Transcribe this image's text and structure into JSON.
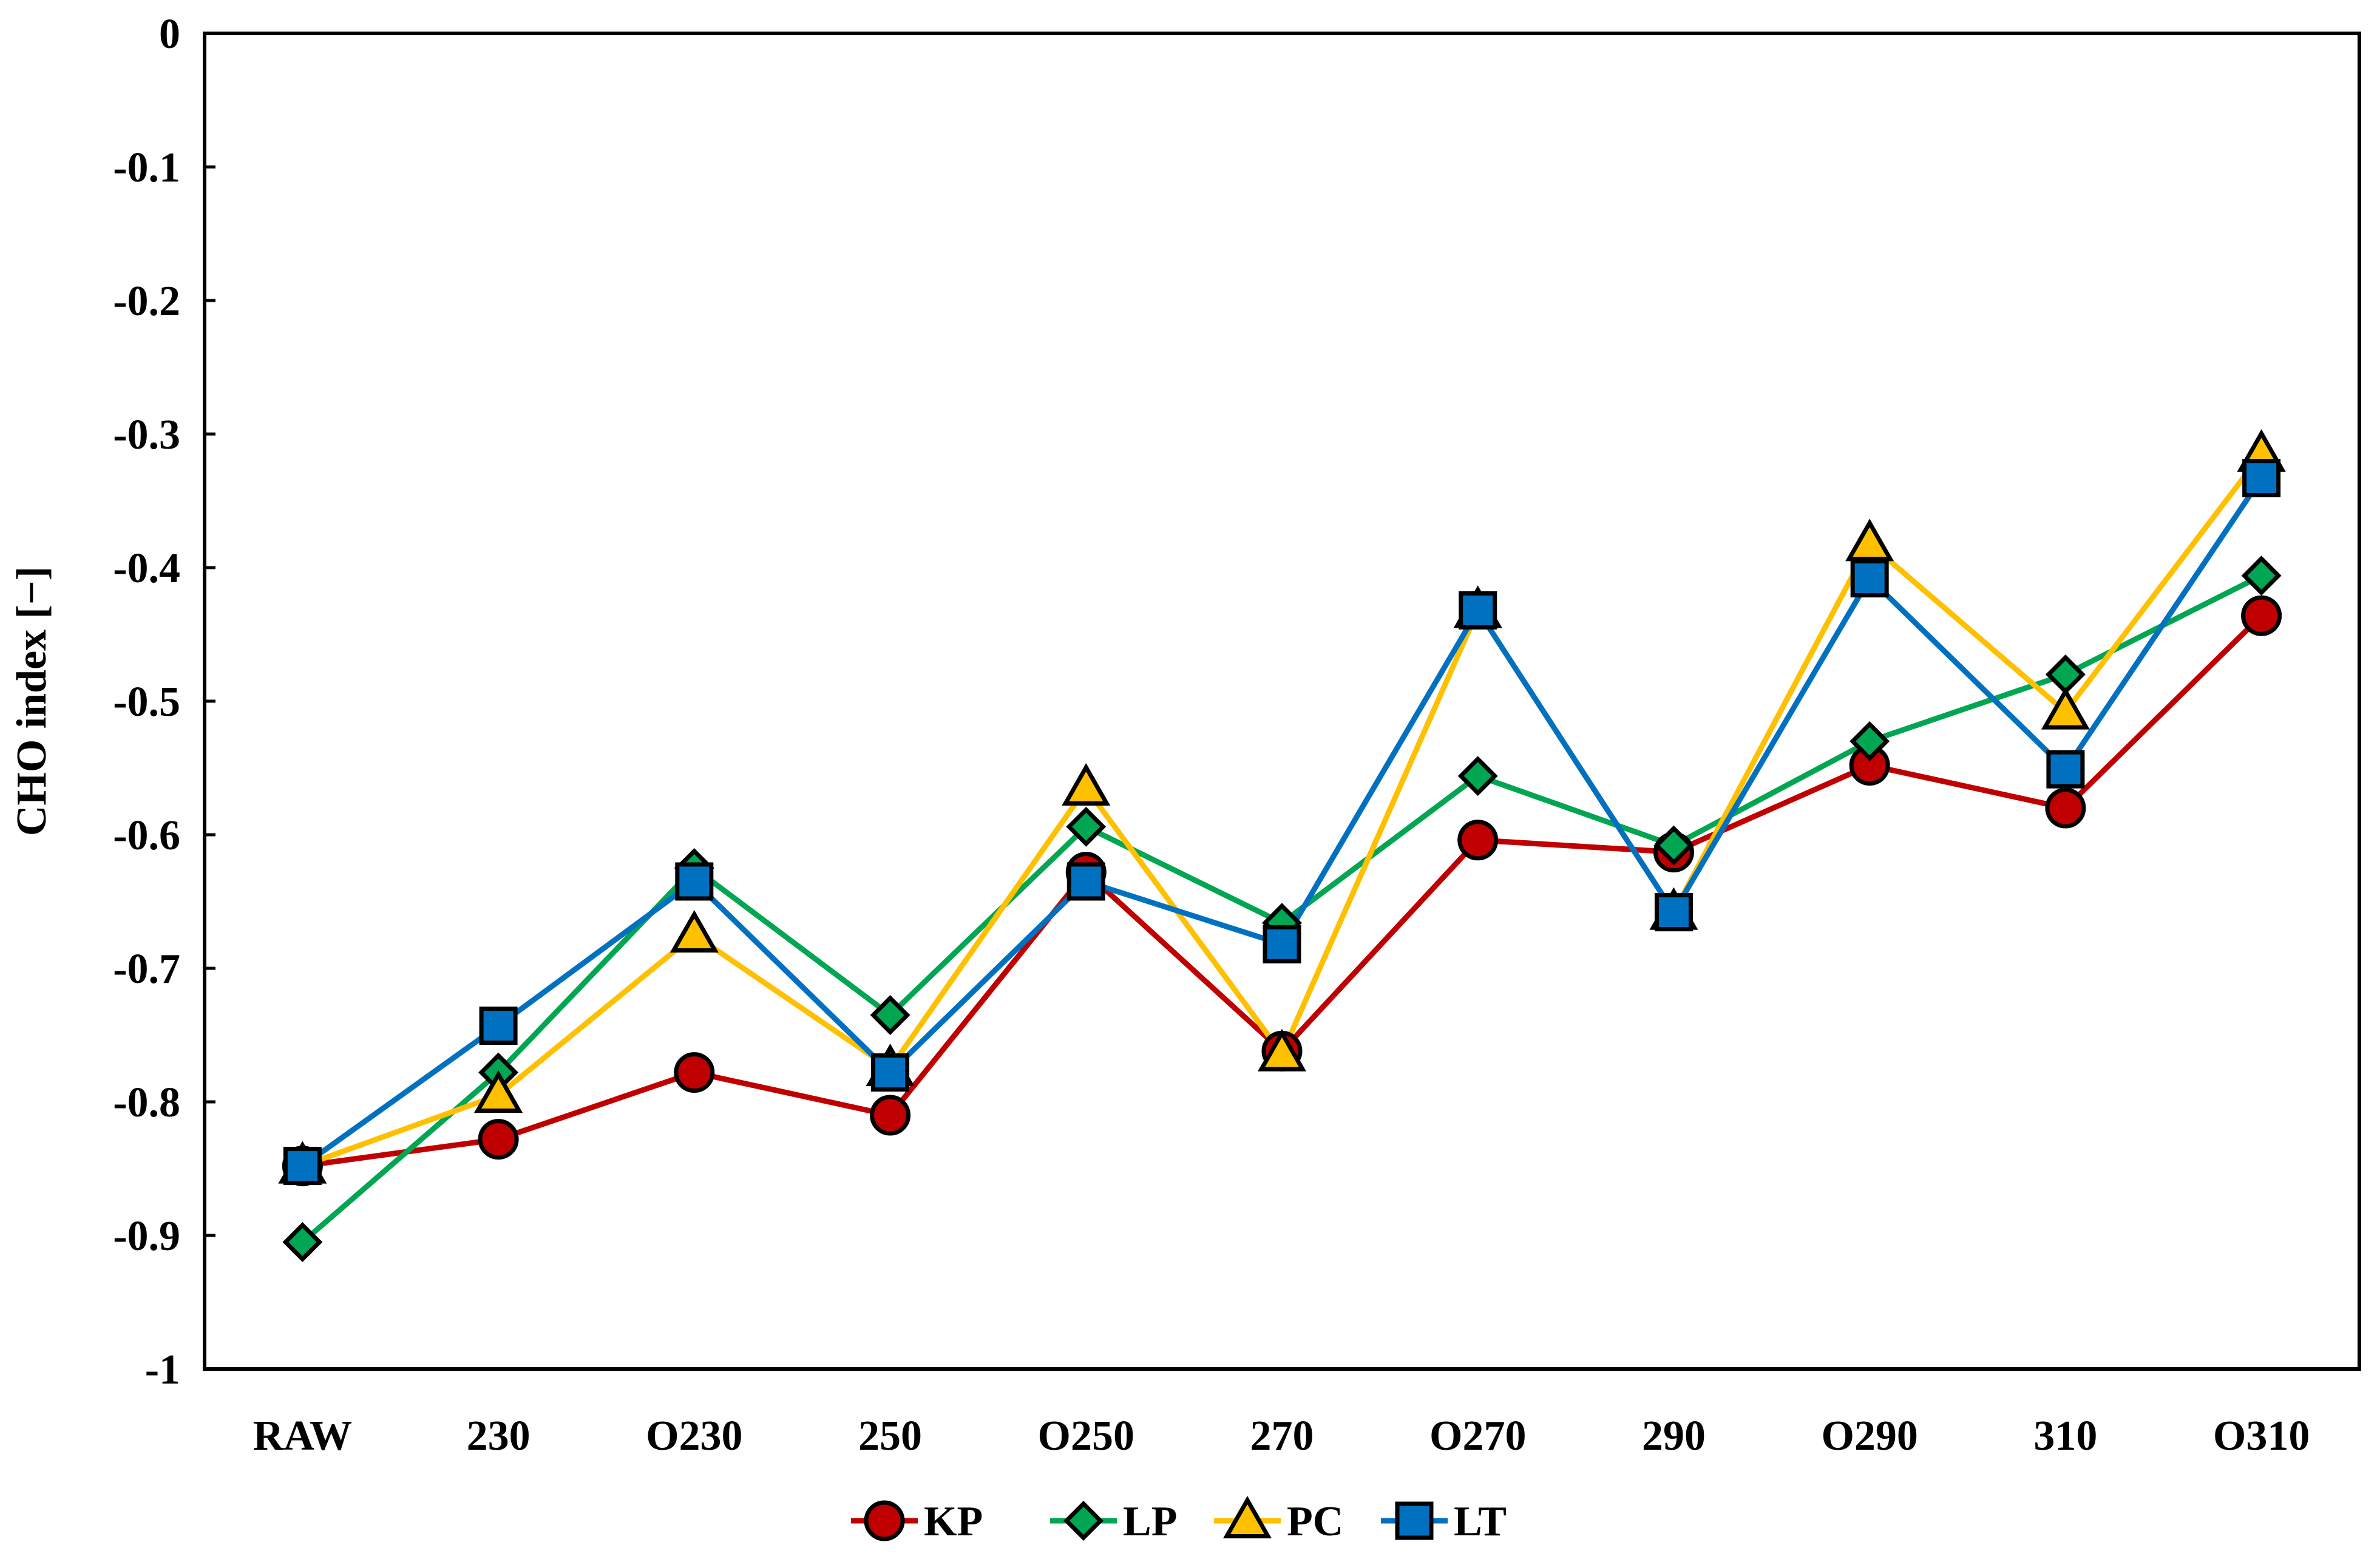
{
  "chart_data": {
    "type": "line",
    "title": "",
    "xlabel": "",
    "ylabel": "CHO index  [−]",
    "ylim": [
      -1,
      0
    ],
    "yticks": [
      "0",
      "-0.1",
      "-0.2",
      "-0.3",
      "-0.4",
      "-0.5",
      "-0.6",
      "-0.7",
      "-0.8",
      "-0.9",
      "-1"
    ],
    "ytick_values": [
      0,
      -0.1,
      -0.2,
      -0.3,
      -0.4,
      -0.5,
      -0.6,
      -0.7,
      -0.8,
      -0.9,
      -1
    ],
    "categories": [
      "RAW",
      "230",
      "O230",
      "250",
      "O250",
      "270",
      "O270",
      "290",
      "O290",
      "310",
      "O310"
    ],
    "grid": false,
    "legend_position": "bottom-center",
    "series": [
      {
        "name": "KP",
        "color": "#c00000",
        "marker": "circle",
        "values": [
          -0.848,
          -0.828,
          -0.778,
          -0.81,
          -0.628,
          -0.762,
          -0.604,
          -0.613,
          -0.548,
          -0.58,
          -0.436
        ]
      },
      {
        "name": "LP",
        "color": "#00a651",
        "marker": "diamond",
        "values": [
          -0.905,
          -0.778,
          -0.625,
          -0.735,
          -0.594,
          -0.666,
          -0.556,
          -0.608,
          -0.53,
          -0.48,
          -0.406
        ]
      },
      {
        "name": "PC",
        "color": "#ffc000",
        "marker": "triangle",
        "values": [
          -0.848,
          -0.795,
          -0.675,
          -0.775,
          -0.565,
          -0.764,
          -0.432,
          -0.658,
          -0.382,
          -0.508,
          -0.315
        ]
      },
      {
        "name": "LT",
        "color": "#0070c0",
        "marker": "square",
        "values": [
          -0.848,
          -0.743,
          -0.635,
          -0.778,
          -0.635,
          -0.682,
          -0.432,
          -0.658,
          -0.408,
          -0.551,
          -0.333
        ]
      }
    ]
  }
}
